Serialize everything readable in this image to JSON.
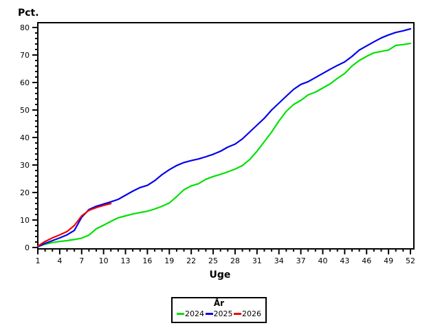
{
  "page": {
    "background": "#ffffff"
  },
  "chart_data": {
    "type": "line",
    "title": "",
    "ylabel": "Pct.",
    "xlabel": "Uge",
    "xlim": [
      1,
      52
    ],
    "ylim": [
      0,
      80
    ],
    "x_ticks_major": [
      1,
      4,
      7,
      10,
      13,
      16,
      19,
      22,
      25,
      28,
      31,
      34,
      37,
      40,
      43,
      46,
      49,
      52
    ],
    "x_minor_step": 1,
    "y_ticks_major": [
      0,
      10,
      20,
      30,
      40,
      50,
      60,
      70,
      80
    ],
    "y_minor_step": 2,
    "grid": false,
    "frame": true,
    "axis_color": "#000000",
    "legend": {
      "title": "År",
      "position": "bottom-center"
    },
    "series": [
      {
        "name": "2024",
        "color": "#00e000",
        "x_start": 1,
        "values": [
          0.3,
          1.2,
          1.8,
          2.2,
          2.5,
          2.9,
          3.4,
          4.5,
          6.8,
          8.1,
          9.5,
          10.8,
          11.5,
          12.2,
          12.7,
          13.2,
          14.0,
          15.0,
          16.2,
          18.5,
          21.0,
          22.4,
          23.2,
          24.8,
          25.8,
          26.6,
          27.5,
          28.5,
          29.8,
          32.0,
          35.0,
          38.5,
          42.0,
          46.0,
          49.5,
          52.0,
          53.5,
          55.5,
          56.5,
          58.0,
          59.5,
          61.5,
          63.3,
          66.0,
          68.0,
          69.5,
          70.8,
          71.3,
          71.8,
          73.5,
          73.8,
          74.2
        ]
      },
      {
        "name": "2025",
        "color": "#0000ee",
        "x_start": 1,
        "values": [
          0.3,
          1.5,
          2.5,
          3.5,
          4.6,
          6.2,
          11.0,
          13.8,
          15.0,
          15.8,
          16.6,
          17.5,
          19.0,
          20.5,
          21.8,
          22.6,
          24.3,
          26.5,
          28.3,
          29.8,
          30.9,
          31.6,
          32.2,
          33.0,
          33.9,
          35.0,
          36.5,
          37.6,
          39.5,
          42.0,
          44.5,
          47.0,
          50.0,
          52.5,
          55.0,
          57.5,
          59.3,
          60.3,
          61.8,
          63.3,
          64.8,
          66.2,
          67.5,
          69.5,
          71.8,
          73.3,
          74.8,
          76.2,
          77.3,
          78.2,
          78.8,
          79.5
        ]
      },
      {
        "name": "2026",
        "color": "#ee0000",
        "x_start": 1,
        "values": [
          0.5,
          2.2,
          3.5,
          4.6,
          5.8,
          8.0,
          11.5,
          13.5,
          14.5,
          15.3,
          16.0
        ]
      }
    ]
  }
}
